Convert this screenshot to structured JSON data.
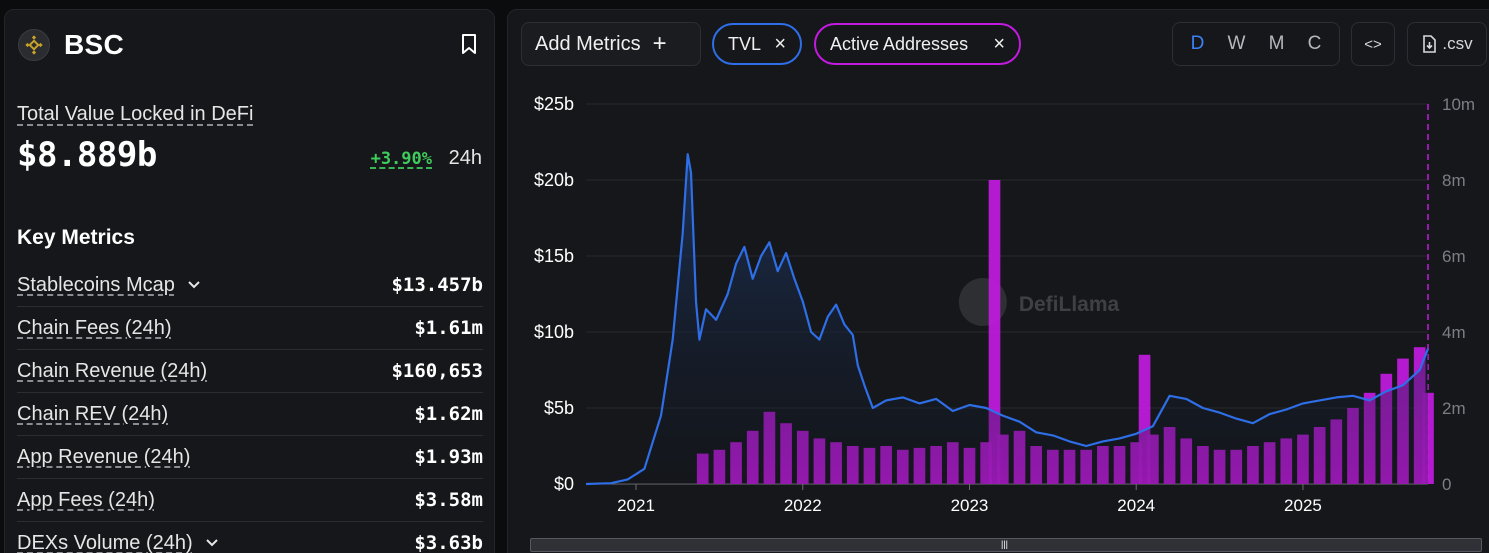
{
  "chain": {
    "name": "BSC",
    "logo_icon": "bnb-logo-icon"
  },
  "tvl": {
    "label": "Total Value Locked in DeFi",
    "value": "$8.889b",
    "change": "+3.90%",
    "period": "24h"
  },
  "key_metrics": {
    "title": "Key Metrics",
    "items": [
      {
        "label": "Stablecoins Mcap",
        "value": "$13.457b",
        "expandable": true
      },
      {
        "label": "Chain Fees (24h)",
        "value": "$1.61m",
        "expandable": false
      },
      {
        "label": "Chain Revenue (24h)",
        "value": "$160,653",
        "expandable": false
      },
      {
        "label": "Chain REV (24h)",
        "value": "$1.62m",
        "expandable": false
      },
      {
        "label": "App Revenue (24h)",
        "value": "$1.93m",
        "expandable": false
      },
      {
        "label": "App Fees (24h)",
        "value": "$3.58m",
        "expandable": false
      },
      {
        "label": "DEXs Volume (24h)",
        "value": "$3.63b",
        "expandable": true
      }
    ]
  },
  "toolbar": {
    "add_metrics_label": "Add Metrics",
    "metric_pills": [
      {
        "label": "TVL",
        "color": "#2e6ee6"
      },
      {
        "label": "Active Addresses",
        "color": "#c21be0"
      }
    ],
    "groupings": [
      "D",
      "W",
      "M",
      "C"
    ],
    "active_grouping": "D",
    "embed_label": "<>",
    "csv_label": ".csv"
  },
  "watermark": "DefiLlama",
  "chart_data": {
    "type": "area",
    "x_ticks": [
      "2021",
      "2022",
      "2023",
      "2024",
      "2025"
    ],
    "y_left_ticks": [
      "$0",
      "$5b",
      "$10b",
      "$15b",
      "$20b",
      "$25b"
    ],
    "y_right_ticks": [
      "0",
      "2m",
      "4m",
      "6m",
      "8m",
      "10m"
    ],
    "ylim_left": [
      0,
      25
    ],
    "ylim_right": [
      0,
      10
    ],
    "grid": true,
    "series": [
      {
        "name": "TVL",
        "axis": "left",
        "unit": "billion USD",
        "color": "#2e6ee6",
        "x": [
          2020.7,
          2020.85,
          2020.95,
          2021.05,
          2021.15,
          2021.22,
          2021.28,
          2021.31,
          2021.33,
          2021.36,
          2021.38,
          2021.42,
          2021.48,
          2021.55,
          2021.6,
          2021.65,
          2021.7,
          2021.75,
          2021.8,
          2021.85,
          2021.9,
          2021.95,
          2022.0,
          2022.05,
          2022.1,
          2022.15,
          2022.2,
          2022.25,
          2022.3,
          2022.33,
          2022.37,
          2022.42,
          2022.5,
          2022.6,
          2022.7,
          2022.8,
          2022.9,
          2023.0,
          2023.1,
          2023.2,
          2023.3,
          2023.4,
          2023.5,
          2023.6,
          2023.7,
          2023.8,
          2023.9,
          2024.0,
          2024.1,
          2024.2,
          2024.3,
          2024.4,
          2024.5,
          2024.6,
          2024.7,
          2024.8,
          2024.9,
          2025.0,
          2025.1,
          2025.2,
          2025.3,
          2025.4,
          2025.5,
          2025.6,
          2025.7,
          2025.75
        ],
        "values": [
          0,
          0.05,
          0.3,
          1.0,
          4.5,
          9.5,
          16.5,
          21.7,
          20.5,
          12.0,
          9.5,
          11.5,
          10.8,
          12.5,
          14.5,
          15.6,
          13.5,
          15.0,
          15.9,
          14.0,
          15.2,
          13.5,
          12.0,
          10.0,
          9.5,
          11.0,
          11.8,
          10.5,
          9.8,
          7.8,
          6.5,
          5.0,
          5.5,
          5.7,
          5.3,
          5.6,
          4.8,
          5.2,
          5.0,
          4.5,
          4.1,
          3.4,
          3.2,
          2.8,
          2.5,
          2.8,
          3.0,
          3.3,
          3.8,
          5.8,
          5.6,
          5.0,
          4.7,
          4.3,
          4.0,
          4.6,
          4.9,
          5.3,
          5.5,
          5.7,
          5.8,
          5.5,
          6.1,
          6.5,
          7.5,
          8.9
        ]
      },
      {
        "name": "Active Addresses",
        "axis": "right",
        "unit": "million",
        "color": "#c21be0",
        "x": [
          2021.4,
          2021.5,
          2021.6,
          2021.7,
          2021.8,
          2021.9,
          2022.0,
          2022.1,
          2022.2,
          2022.3,
          2022.4,
          2022.5,
          2022.6,
          2022.7,
          2022.8,
          2022.9,
          2023.0,
          2023.1,
          2023.15,
          2023.2,
          2023.3,
          2023.4,
          2023.5,
          2023.6,
          2023.7,
          2023.8,
          2023.9,
          2024.0,
          2024.05,
          2024.1,
          2024.2,
          2024.3,
          2024.4,
          2024.5,
          2024.6,
          2024.7,
          2024.8,
          2024.9,
          2025.0,
          2025.1,
          2025.2,
          2025.3,
          2025.4,
          2025.5,
          2025.6,
          2025.7,
          2025.75
        ],
        "values": [
          0.8,
          0.9,
          1.1,
          1.4,
          1.9,
          1.6,
          1.4,
          1.2,
          1.1,
          1.0,
          0.95,
          1.0,
          0.9,
          0.95,
          1.0,
          1.1,
          0.95,
          1.1,
          8.0,
          1.3,
          1.4,
          1.0,
          0.9,
          0.9,
          0.9,
          1.0,
          1.0,
          1.1,
          3.4,
          1.3,
          1.5,
          1.2,
          1.0,
          0.9,
          0.9,
          1.0,
          1.1,
          1.2,
          1.3,
          1.5,
          1.7,
          2.0,
          2.4,
          2.9,
          3.3,
          3.6,
          2.4
        ]
      }
    ]
  }
}
